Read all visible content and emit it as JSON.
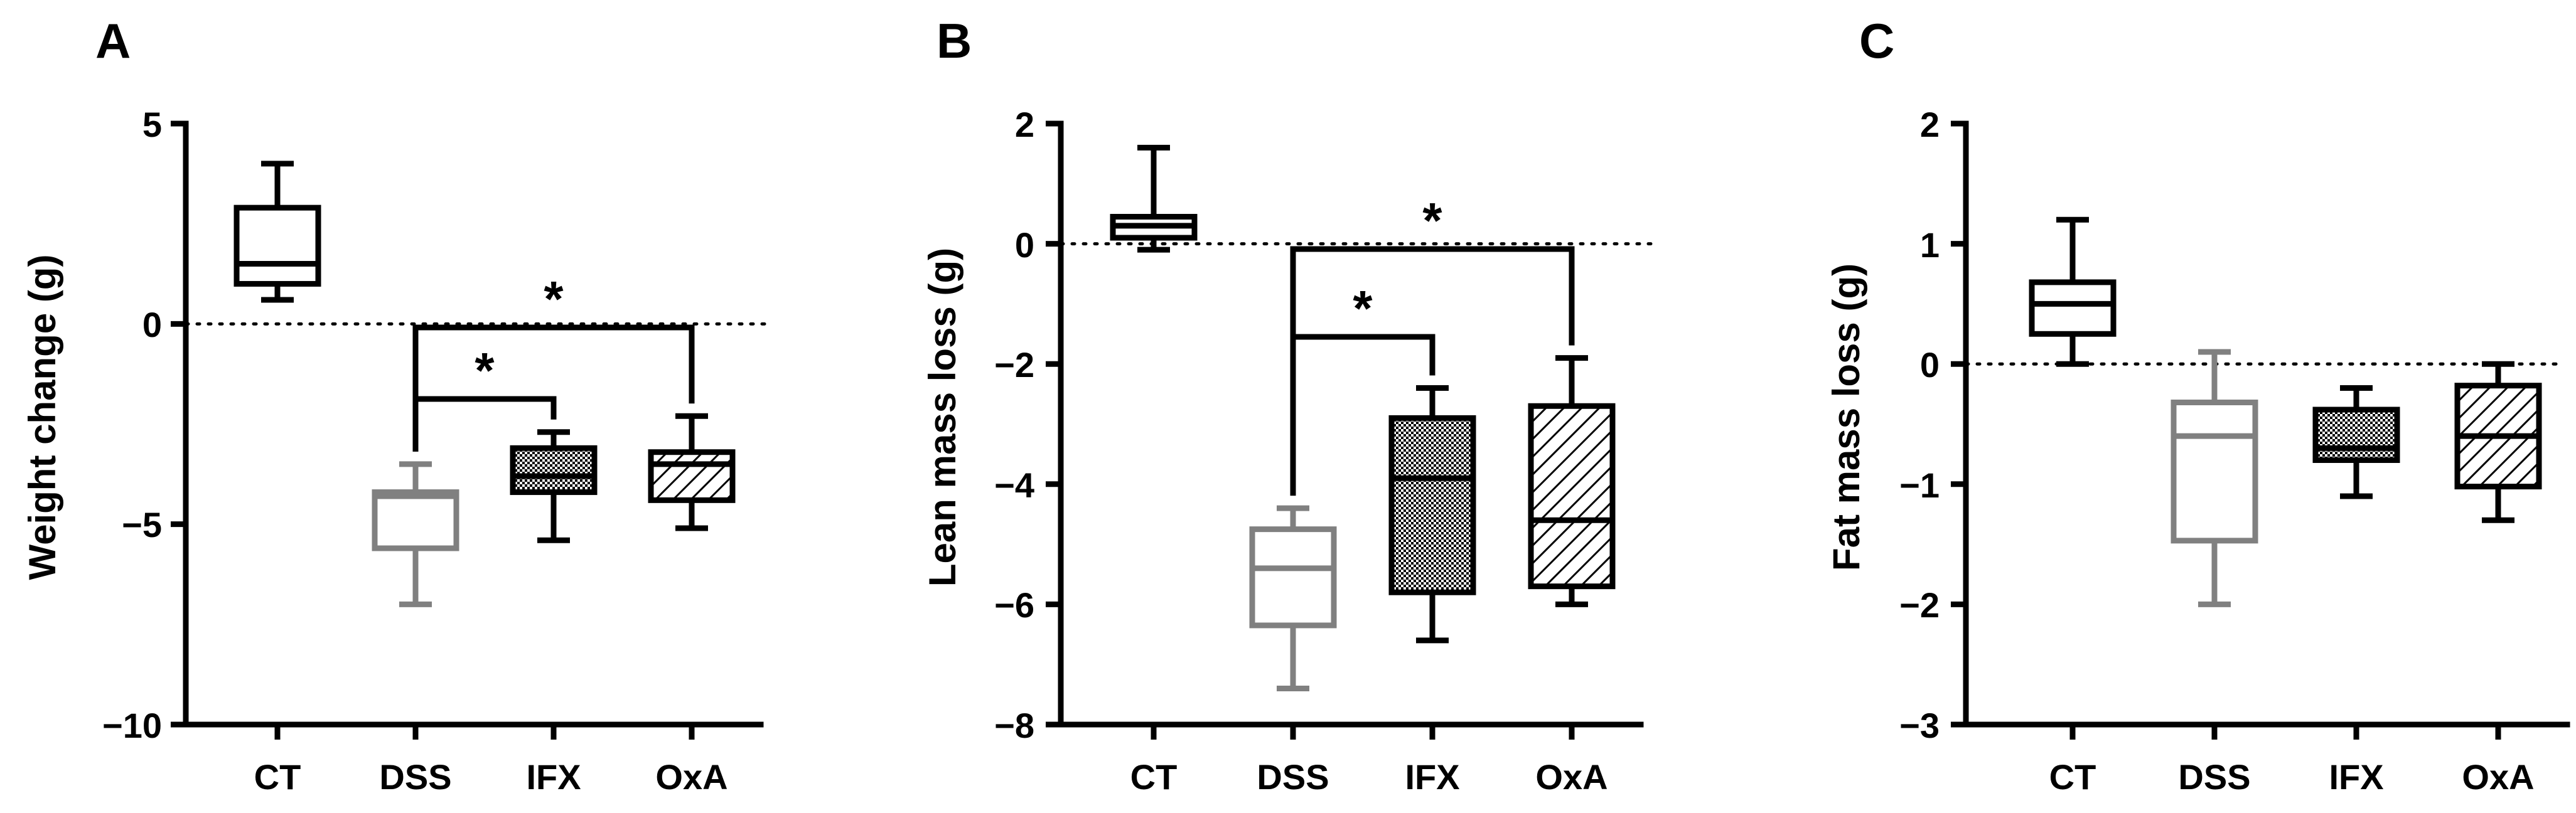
{
  "colors": {
    "black": "#000000",
    "gray": "#808080"
  },
  "chart_data": [
    {
      "type": "box",
      "panel": "A",
      "ylabel": "Weight change (g)",
      "ylim": [
        -10,
        5
      ],
      "yticks": [
        5,
        0,
        -5,
        -10
      ],
      "ytick_labels": [
        "5",
        "0",
        "−5",
        "−10"
      ],
      "categories": [
        "CT",
        "DSS",
        "IFX",
        "OxA"
      ],
      "reference_line": 0,
      "boxes": [
        {
          "category": "CT",
          "min": 0.6,
          "q1": 1.0,
          "median": 1.5,
          "q3": 2.9,
          "max": 4.0,
          "color": "black",
          "fill": "none"
        },
        {
          "category": "DSS",
          "min": -7.0,
          "q1": -5.6,
          "median": -4.3,
          "q3": -4.2,
          "max": -3.5,
          "color": "gray",
          "fill": "none"
        },
        {
          "category": "IFX",
          "min": -5.4,
          "q1": -4.2,
          "median": -3.8,
          "q3": -3.1,
          "max": -2.7,
          "color": "black",
          "fill": "checker"
        },
        {
          "category": "OxA",
          "min": -5.1,
          "q1": -4.4,
          "median": -3.5,
          "q3": -3.2,
          "max": -2.3,
          "color": "black",
          "fill": "hatch"
        }
      ],
      "significance": [
        {
          "from": "DSS",
          "to": "IFX",
          "label": "*"
        },
        {
          "from": "DSS",
          "to": "OxA",
          "label": "*"
        }
      ]
    },
    {
      "type": "box",
      "panel": "B",
      "ylabel": "Lean mass loss (g)",
      "ylim": [
        -8,
        2
      ],
      "yticks": [
        2,
        0,
        -2,
        -4,
        -6,
        -8
      ],
      "ytick_labels": [
        "2",
        "0",
        "−2",
        "−4",
        "−6",
        "−8"
      ],
      "categories": [
        "CT",
        "DSS",
        "IFX",
        "OxA"
      ],
      "reference_line": 0,
      "boxes": [
        {
          "category": "CT",
          "min": -0.1,
          "q1": 0.1,
          "median": 0.3,
          "q3": 0.45,
          "max": 1.6,
          "color": "black",
          "fill": "none"
        },
        {
          "category": "DSS",
          "min": -7.4,
          "q1": -6.35,
          "median": -5.4,
          "q3": -4.75,
          "max": -4.4,
          "color": "gray",
          "fill": "none"
        },
        {
          "category": "IFX",
          "min": -6.6,
          "q1": -5.8,
          "median": -3.9,
          "q3": -2.9,
          "max": -2.4,
          "color": "black",
          "fill": "checker"
        },
        {
          "category": "OxA",
          "min": -6.0,
          "q1": -5.7,
          "median": -4.6,
          "q3": -2.7,
          "max": -1.9,
          "color": "black",
          "fill": "hatch"
        }
      ],
      "significance": [
        {
          "from": "DSS",
          "to": "IFX",
          "label": "*"
        },
        {
          "from": "DSS",
          "to": "OxA",
          "label": "*"
        }
      ]
    },
    {
      "type": "box",
      "panel": "C",
      "ylabel": "Fat mass loss (g)",
      "ylim": [
        -3,
        2
      ],
      "yticks": [
        2,
        1,
        0,
        -1,
        -2,
        -3
      ],
      "ytick_labels": [
        "2",
        "1",
        "0",
        "−1",
        "−2",
        "−3"
      ],
      "categories": [
        "CT",
        "DSS",
        "IFX",
        "OxA"
      ],
      "reference_line": 0,
      "boxes": [
        {
          "category": "CT",
          "min": 0.0,
          "q1": 0.25,
          "median": 0.5,
          "q3": 0.68,
          "max": 1.2,
          "color": "black",
          "fill": "none"
        },
        {
          "category": "DSS",
          "min": -2.0,
          "q1": -1.47,
          "median": -0.6,
          "q3": -0.32,
          "max": 0.1,
          "color": "gray",
          "fill": "none"
        },
        {
          "category": "IFX",
          "min": -1.1,
          "q1": -0.8,
          "median": -0.7,
          "q3": -0.38,
          "max": -0.2,
          "color": "black",
          "fill": "checker"
        },
        {
          "category": "OxA",
          "min": -1.3,
          "q1": -1.02,
          "median": -0.6,
          "q3": -0.18,
          "max": 0.0,
          "color": "black",
          "fill": "hatch"
        }
      ],
      "significance": []
    }
  ]
}
